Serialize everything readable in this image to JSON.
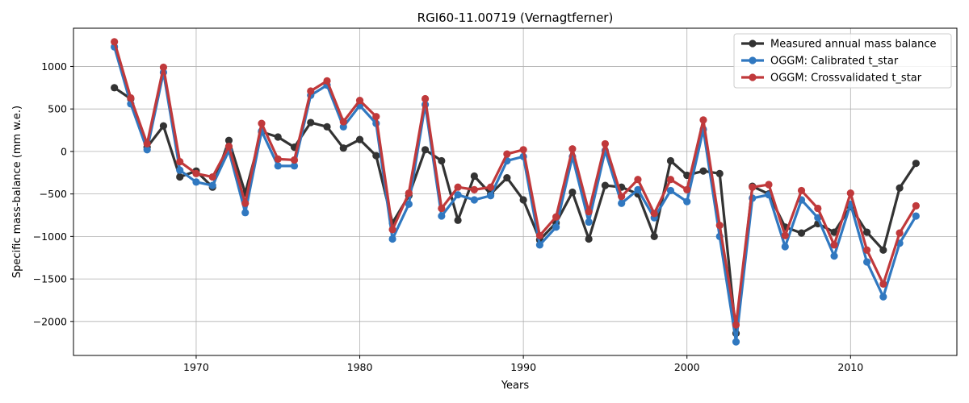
{
  "chart_data": {
    "type": "line",
    "title": "RGI60-11.00719 (Vernagtferner)",
    "xlabel": "Years",
    "ylabel": "Specific mass-balance (mm w.e.)",
    "xlim": [
      1962.5,
      2016.5
    ],
    "ylim": [
      -2400,
      1450
    ],
    "xticks": [
      1970,
      1980,
      1990,
      2000,
      2010
    ],
    "yticks": [
      -2000,
      -1500,
      -1000,
      -500,
      0,
      500,
      1000
    ],
    "grid": true,
    "legend_position": "top-right",
    "x": [
      1965,
      1966,
      1967,
      1968,
      1969,
      1970,
      1971,
      1972,
      1973,
      1974,
      1975,
      1976,
      1977,
      1978,
      1979,
      1980,
      1981,
      1982,
      1983,
      1984,
      1985,
      1986,
      1987,
      1988,
      1989,
      1990,
      1991,
      1992,
      1993,
      1994,
      1995,
      1996,
      1997,
      1998,
      1999,
      2000,
      2001,
      2002,
      2003,
      2004,
      2005,
      2006,
      2007,
      2008,
      2009,
      2010,
      2011,
      2012,
      2013,
      2014
    ],
    "series": [
      {
        "name": "Measured annual mass balance",
        "color": "#333333",
        "values": [
          750,
          620,
          50,
          300,
          -300,
          -230,
          -420,
          130,
          -490,
          230,
          170,
          50,
          340,
          290,
          40,
          140,
          -50,
          -840,
          -520,
          20,
          -110,
          -810,
          -290,
          -500,
          -310,
          -570,
          -1040,
          -840,
          -480,
          -1030,
          -400,
          -420,
          -500,
          -1000,
          -110,
          -280,
          -230,
          -260,
          -2140,
          -410,
          -500,
          -890,
          -960,
          -850,
          -950,
          -650,
          -950,
          -1160,
          -430,
          -140
        ]
      },
      {
        "name": "OGGM: Calibrated t_star",
        "color": "#3078c0",
        "values": [
          1230,
          560,
          20,
          930,
          -220,
          -360,
          -400,
          10,
          -720,
          240,
          -170,
          -170,
          660,
          780,
          290,
          540,
          330,
          -1030,
          -620,
          550,
          -760,
          -510,
          -570,
          -520,
          -110,
          -60,
          -1100,
          -890,
          -60,
          -830,
          10,
          -610,
          -450,
          -780,
          -460,
          -590,
          260,
          -1000,
          -2240,
          -550,
          -510,
          -1120,
          -570,
          -780,
          -1230,
          -620,
          -1300,
          -1710,
          -1080,
          -760
        ]
      },
      {
        "name": "OGGM: Crossvalidated t_star",
        "color": "#c0393b",
        "values": [
          1290,
          630,
          90,
          990,
          -120,
          -260,
          -300,
          60,
          -610,
          330,
          -90,
          -100,
          710,
          830,
          350,
          600,
          410,
          -920,
          -490,
          620,
          -670,
          -420,
          -450,
          -420,
          -30,
          20,
          -990,
          -770,
          30,
          -710,
          90,
          -530,
          -330,
          -730,
          -330,
          -450,
          370,
          -870,
          -2040,
          -420,
          -390,
          -990,
          -460,
          -670,
          -1100,
          -490,
          -1160,
          -1560,
          -960,
          -640
        ]
      }
    ]
  }
}
